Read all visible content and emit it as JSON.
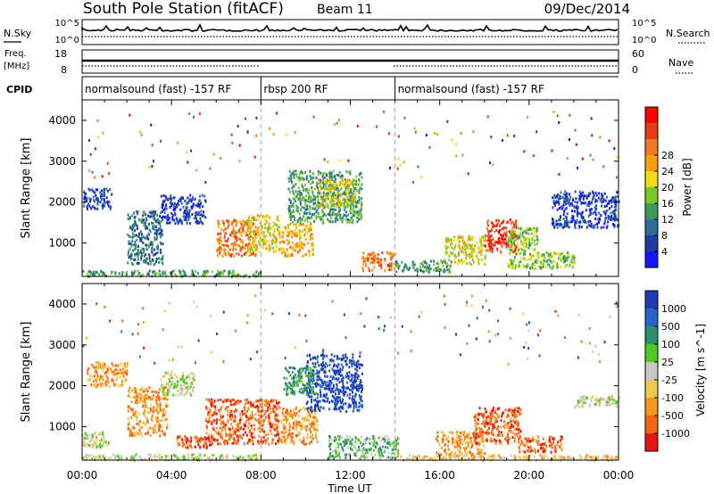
{
  "header": {
    "station": "South Pole Station (fitACF)",
    "beam": "Beam 11",
    "date": "09/Dec/2014"
  },
  "panels": {
    "nsky_label": "N.Sky",
    "nsearch_label": "N.Search",
    "freq_label": "Freq.",
    "freq_unit": "[MHz]",
    "nave_label": "Nave",
    "cpid_label": "CPID",
    "nsky_ticks": [
      "10^5",
      "10^0"
    ],
    "nsearch_ticks": [
      "10^5",
      "10^0"
    ],
    "freq_ticks": [
      "18",
      "8"
    ],
    "nave_ticks": [
      "60",
      "0"
    ]
  },
  "cpid_segments": [
    {
      "label": "normalsound (fast) -157 RF",
      "start_h": 0,
      "end_h": 8
    },
    {
      "label": "rbsp 200 RF",
      "start_h": 8,
      "end_h": 14
    },
    {
      "label": "normalsound (fast) -157 RF",
      "start_h": 14,
      "end_h": 24
    }
  ],
  "chart_data": [
    {
      "type": "heatmap",
      "name": "power",
      "ylabel": "Slant Range [km]",
      "xlabel": "Time UT",
      "xlim": [
        0,
        24
      ],
      "ylim": [
        180,
        4500
      ],
      "x_tick_labels": [
        "00:00",
        "04:00",
        "08:00",
        "12:00",
        "16:00",
        "20:00",
        "00:00"
      ],
      "x_tick_hours": [
        0,
        4,
        8,
        12,
        16,
        20,
        24
      ],
      "y_ticks": [
        1000,
        2000,
        3000,
        4000
      ],
      "colorbar": {
        "label": "Power [dB]",
        "ticks": [
          4,
          8,
          12,
          16,
          20,
          24,
          28
        ],
        "colors": [
          "#1414ff",
          "#1e3ca0",
          "#2d6e96",
          "#3c9b5a",
          "#78c828",
          "#f0dc14",
          "#f5a00a",
          "#f0781e",
          "#e63c14",
          "#ff0000"
        ]
      },
      "regions": [
        {
          "t0": 0.0,
          "t1": 8.0,
          "r0": 200,
          "r1": 350,
          "level": 3
        },
        {
          "t0": 0.0,
          "t1": 1.3,
          "r0": 1850,
          "r1": 2350,
          "level": 1
        },
        {
          "t0": 2.0,
          "t1": 3.6,
          "r0": 500,
          "r1": 1800,
          "level": 2
        },
        {
          "t0": 3.5,
          "t1": 5.5,
          "r0": 1500,
          "r1": 2200,
          "level": 1
        },
        {
          "t0": 6.0,
          "t1": 7.8,
          "r0": 700,
          "r1": 1600,
          "level": 7
        },
        {
          "t0": 7.4,
          "t1": 8.8,
          "r0": 800,
          "r1": 1700,
          "level": 5
        },
        {
          "t0": 8.8,
          "t1": 10.3,
          "r0": 700,
          "r1": 1500,
          "level": 6
        },
        {
          "t0": 9.2,
          "t1": 12.5,
          "r0": 1500,
          "r1": 2800,
          "level": 3
        },
        {
          "t0": 10.5,
          "t1": 12.2,
          "r0": 1900,
          "r1": 2600,
          "level": 5
        },
        {
          "t0": 12.5,
          "t1": 14.0,
          "r0": 350,
          "r1": 800,
          "level": 7
        },
        {
          "t0": 14.0,
          "t1": 16.5,
          "r0": 300,
          "r1": 600,
          "level": 3
        },
        {
          "t0": 16.2,
          "t1": 18.0,
          "r0": 500,
          "r1": 1200,
          "level": 5
        },
        {
          "t0": 18.0,
          "t1": 19.4,
          "r0": 800,
          "r1": 1600,
          "level": 8
        },
        {
          "t0": 19.0,
          "t1": 20.4,
          "r0": 400,
          "r1": 1400,
          "level": 4
        },
        {
          "t0": 20.0,
          "t1": 22.0,
          "r0": 400,
          "r1": 800,
          "level": 4
        },
        {
          "t0": 21.0,
          "t1": 24.0,
          "r0": 1400,
          "r1": 2300,
          "level": 1
        }
      ]
    },
    {
      "type": "heatmap",
      "name": "velocity",
      "ylabel": "Slant Range [km]",
      "xlabel": "Time UT",
      "xlim": [
        0,
        24
      ],
      "ylim": [
        180,
        4500
      ],
      "x_tick_labels": [
        "00:00",
        "04:00",
        "08:00",
        "12:00",
        "16:00",
        "20:00",
        "00:00"
      ],
      "x_tick_hours": [
        0,
        4,
        8,
        12,
        16,
        20,
        24
      ],
      "y_ticks": [
        1000,
        2000,
        3000,
        4000
      ],
      "colorbar": {
        "label": "Velocity [m s^-1]",
        "ticks": [
          "1000",
          "500",
          "100",
          "25",
          "-25",
          "-100",
          "-500",
          "-1000"
        ],
        "colors": [
          "#1e3cb4",
          "#2864c8",
          "#2d8c6e",
          "#50c828",
          "#c8c8c8",
          "#f0c850",
          "#f5961e",
          "#f56414",
          "#e61414"
        ]
      },
      "regions": [
        {
          "t0": 0.0,
          "t1": 8.0,
          "r0": 200,
          "r1": 350,
          "level": 4
        },
        {
          "t0": 0.0,
          "t1": 1.2,
          "r0": 500,
          "r1": 900,
          "level": 4
        },
        {
          "t0": 0.2,
          "t1": 2.0,
          "r0": 2000,
          "r1": 2600,
          "level": 6
        },
        {
          "t0": 2.0,
          "t1": 3.8,
          "r0": 800,
          "r1": 2000,
          "level": 6
        },
        {
          "t0": 3.5,
          "t1": 5.0,
          "r0": 1800,
          "r1": 2400,
          "level": 4
        },
        {
          "t0": 4.2,
          "t1": 6.0,
          "r0": 500,
          "r1": 800,
          "level": 7
        },
        {
          "t0": 5.5,
          "t1": 8.8,
          "r0": 600,
          "r1": 1700,
          "level": 7
        },
        {
          "t0": 8.8,
          "t1": 10.5,
          "r0": 600,
          "r1": 1500,
          "level": 6
        },
        {
          "t0": 10.0,
          "t1": 12.5,
          "r0": 1400,
          "r1": 2800,
          "level": 0
        },
        {
          "t0": 9.0,
          "t1": 10.5,
          "r0": 1800,
          "r1": 2500,
          "level": 2
        },
        {
          "t0": 11.0,
          "t1": 14.2,
          "r0": 250,
          "r1": 800,
          "level": 3
        },
        {
          "t0": 15.8,
          "t1": 18.0,
          "r0": 300,
          "r1": 900,
          "level": 6
        },
        {
          "t0": 17.5,
          "t1": 19.6,
          "r0": 600,
          "r1": 1500,
          "level": 7
        },
        {
          "t0": 19.5,
          "t1": 21.5,
          "r0": 400,
          "r1": 800,
          "level": 7
        },
        {
          "t0": 22.0,
          "t1": 24.0,
          "r0": 1500,
          "r1": 1800,
          "level": 4
        },
        {
          "t0": 14.0,
          "t1": 24.0,
          "r0": 200,
          "r1": 330,
          "level": 5
        }
      ]
    }
  ]
}
